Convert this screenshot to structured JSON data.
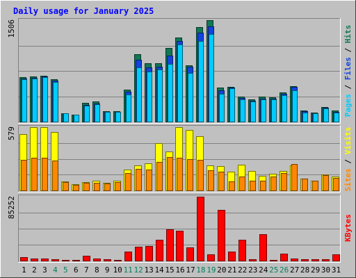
{
  "chart_data": {
    "type": "bar",
    "title": "Daily usage for January 2025",
    "days": [
      "1",
      "2",
      "3",
      "4",
      "5",
      "6",
      "7",
      "8",
      "9",
      "10",
      "11",
      "12",
      "13",
      "14",
      "15",
      "16",
      "17",
      "18",
      "19",
      "20",
      "21",
      "22",
      "23",
      "24",
      "25",
      "26",
      "27",
      "28",
      "29",
      "30",
      "31"
    ],
    "weekend_days": [
      "4",
      "5",
      "11",
      "12",
      "18",
      "19",
      "25",
      "26"
    ],
    "panels": [
      {
        "id": "top",
        "max_label": "1506",
        "ymax": 1506,
        "right_label": [
          "Pages",
          "Files",
          "Hits"
        ],
        "right_label_sep": " / ",
        "series": [
          {
            "name": "Hits",
            "color": "#117755",
            "values": [
              660,
              672,
              680,
              630,
              125,
              108,
              280,
              295,
              158,
              155,
              470,
              1000,
              865,
              870,
              1090,
              1250,
              840,
              1400,
              1506,
              510,
              520,
              372,
              333,
              372,
              360,
              438,
              523,
              160,
              138,
              220,
              160
            ]
          },
          {
            "name": "Files",
            "color": "#1144dd",
            "values": [
              642,
              650,
              672,
              610,
              110,
              95,
              245,
              270,
              148,
              145,
              440,
              920,
              805,
              820,
              980,
              1200,
              810,
              1320,
              1410,
              460,
              510,
              350,
              310,
              340,
              340,
              408,
              515,
              150,
              125,
              208,
              145
            ]
          },
          {
            "name": "Pages",
            "color": "#00ccff",
            "values": [
              625,
              640,
              660,
              588,
              120,
              100,
              235,
              255,
              148,
              148,
              400,
              805,
              745,
              775,
              860,
              1150,
              720,
              1195,
              1300,
              410,
              500,
              330,
              300,
              330,
              330,
              390,
              460,
              138,
              120,
              195,
              132
            ]
          }
        ]
      },
      {
        "id": "middle",
        "max_label": "579",
        "ymax": 579,
        "right_label": [
          "Sites",
          "Visits"
        ],
        "right_label_sep": " / ",
        "series": [
          {
            "name": "Visits",
            "color": "#ffff00",
            "values": [
              515,
              578,
              579,
              535,
              80,
              58,
              77,
              86,
              70,
              89,
              189,
              229,
              245,
              435,
              359,
              579,
              551,
              494,
              230,
              220,
              170,
              235,
              178,
              135,
              151,
              178,
              231,
              105,
              90,
              148,
              126
            ]
          },
          {
            "name": "Sites",
            "color": "#ff8800",
            "values": [
              283,
              298,
              299,
              273,
              79,
              53,
              67,
              72,
              62,
              79,
              159,
              197,
              191,
              262,
              303,
              298,
              285,
              281,
              186,
              172,
              85,
              129,
              91,
              90,
              126,
              158,
              244,
              105,
              87,
              142,
              113
            ]
          }
        ]
      },
      {
        "id": "bottom",
        "max_label": "85252",
        "ymax": 85252,
        "right_label": [
          "KBytes"
        ],
        "right_label_sep": "",
        "series": [
          {
            "name": "KBytes",
            "color": "#ff0000",
            "values": [
              5065,
              2763,
              2763,
              2303,
              1382,
              1382,
              6447,
              3224,
              1842,
              1382,
              11975,
              18882,
              19343,
              27633,
              41449,
              39607,
              17501,
              85252,
              8749,
              67291,
              12435,
              27633,
              2303,
              35461,
              1382,
              9210,
              3224,
              2303,
              1842,
              1842,
              8289
            ]
          }
        ]
      }
    ]
  },
  "colors": {
    "background": "#c0c0c0",
    "title": "#0000ff",
    "axis_label": "#000000",
    "weekday_label": "#000000",
    "weekend_label": "#00805c",
    "gridline": "#808080"
  }
}
